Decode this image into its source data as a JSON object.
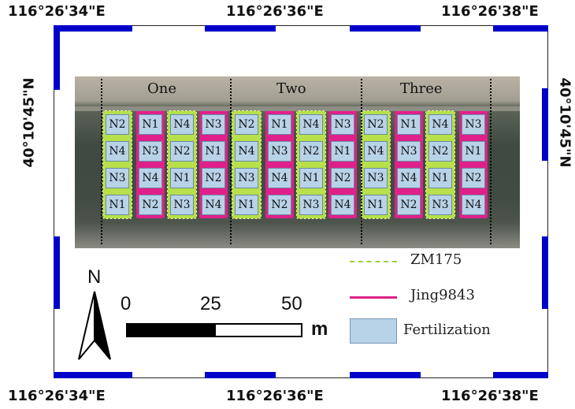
{
  "top_coords": [
    "116°26'34\"E",
    "116°26'36\"E",
    "116°26'38\"E"
  ],
  "bottom_coords": [
    "116°26'34\"E",
    "116°26'36\"E",
    "116°26'38\"E"
  ],
  "left_coord": "40°10'45\"N",
  "right_coord": "40°10'45\"N",
  "replicates": [
    "One",
    "Two",
    "Three"
  ],
  "plot_grid": [
    [
      "N2",
      "N1",
      "N4",
      "N3",
      "N2",
      "N1",
      "N4",
      "N3",
      "N2",
      "N1",
      "N4",
      "N3"
    ],
    [
      "N4",
      "N3",
      "N2",
      "N1",
      "N4",
      "N3",
      "N2",
      "N1",
      "N4",
      "N3",
      "N2",
      "N1"
    ],
    [
      "N3",
      "N4",
      "N1",
      "N2",
      "N3",
      "N4",
      "N1",
      "N2",
      "N3",
      "N4",
      "N1",
      "N2"
    ],
    [
      "N1",
      "N2",
      "N3",
      "N4",
      "N1",
      "N2",
      "N3",
      "N4",
      "N1",
      "N2",
      "N3",
      "N4"
    ]
  ],
  "column_varieties": [
    "ZM175",
    "Jing9843",
    "ZM175",
    "Jing9843",
    "ZM175",
    "Jing9843",
    "ZM175",
    "Jing9843",
    "ZM175",
    "Jing9843",
    "ZM175",
    "Jing9843"
  ],
  "colors": {
    "frame_blue": "#0000c8",
    "zm175": "#b7e04a",
    "jing9843": "#e0208a",
    "fertilization": "#b8d2e8"
  },
  "north_label": "N",
  "scale_bar": {
    "ticks": [
      "0",
      "25",
      "50"
    ],
    "unit": "m"
  },
  "legend": [
    {
      "label": "ZM175",
      "type": "dashed-line",
      "color": "#9ad03a"
    },
    {
      "label": "Jing9843",
      "type": "line",
      "color": "#e0208a"
    },
    {
      "label": "Fertilization",
      "type": "patch",
      "color": "#b8d2e8"
    }
  ]
}
